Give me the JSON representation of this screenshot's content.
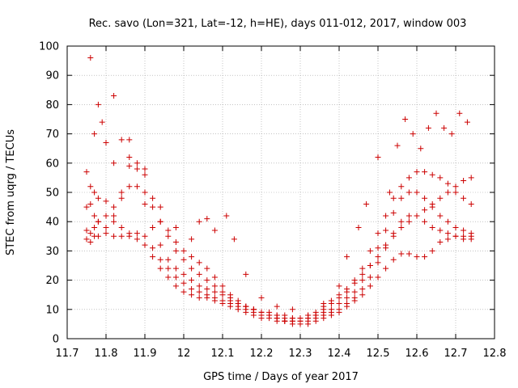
{
  "chart_data": {
    "type": "scatter",
    "title": "Rec. savo (Lon=321, Lat=-12, h=HE), days 011-012, 2017, window 003",
    "xlabel": "GPS time / Days of year 2017",
    "ylabel": "STEC from uqrg / TECUs",
    "xlim": [
      11.7,
      12.8
    ],
    "ylim": [
      0,
      100
    ],
    "xticks": [
      "11.7",
      "11.8",
      "11.9",
      "12",
      "12.1",
      "12.2",
      "12.3",
      "12.4",
      "12.5",
      "12.6",
      "12.7",
      "12.8"
    ],
    "yticks": [
      "0",
      "10",
      "20",
      "30",
      "40",
      "50",
      "60",
      "70",
      "80",
      "90",
      "100"
    ],
    "grid": true,
    "marker": "+",
    "color": "#cc0000",
    "series": [
      {
        "name": "",
        "x": [
          11.76,
          11.77,
          11.78,
          11.79,
          11.8,
          11.82,
          11.84,
          11.86,
          11.88,
          11.9,
          11.92,
          11.94,
          11.96,
          11.98,
          12.0,
          12.02,
          12.04,
          12.06,
          12.08,
          12.1,
          12.12,
          12.14,
          12.16,
          12.18,
          12.2,
          12.22,
          12.24,
          12.26,
          12.28,
          12.3,
          12.32,
          12.34,
          12.36,
          12.38,
          12.4,
          12.42,
          12.44,
          12.46,
          12.48,
          12.5,
          12.52,
          12.54,
          12.56,
          12.58,
          12.6,
          12.62,
          12.64,
          12.66,
          12.68,
          12.7,
          12.72,
          12.74
        ],
        "y": [
          96,
          70,
          80,
          74,
          67,
          83,
          68,
          68,
          58,
          50,
          45,
          40,
          37,
          33,
          30,
          28,
          26,
          24,
          21,
          18,
          15,
          13,
          11,
          10,
          9,
          8,
          7,
          6,
          6,
          6,
          7,
          8,
          10,
          12,
          14,
          16,
          19,
          22,
          25,
          28,
          32,
          35,
          38,
          40,
          42,
          44,
          46,
          48,
          50,
          52,
          54,
          55
        ]
      },
      {
        "name": "",
        "x": [
          11.75,
          11.76,
          11.77,
          11.78,
          11.8,
          11.82,
          11.84,
          11.86,
          11.88,
          11.9,
          11.92,
          11.94,
          11.96,
          11.98,
          12.0,
          12.02,
          12.04,
          12.06,
          12.08,
          12.1,
          12.12,
          12.14,
          12.16,
          12.18,
          12.2,
          12.22,
          12.24,
          12.26,
          12.28,
          12.3,
          12.32,
          12.34,
          12.36,
          12.38,
          12.4,
          12.42,
          12.44,
          12.46,
          12.48,
          12.5,
          12.52,
          12.54,
          12.56,
          12.58,
          12.6,
          12.62,
          12.64,
          12.66,
          12.68,
          12.7,
          12.72,
          12.74
        ],
        "y": [
          57,
          52,
          50,
          48,
          47,
          45,
          50,
          59,
          60,
          56,
          48,
          40,
          35,
          30,
          27,
          24,
          22,
          20,
          18,
          16,
          14,
          12,
          11,
          10,
          9,
          8,
          8,
          7,
          7,
          7,
          8,
          9,
          11,
          13,
          15,
          17,
          20,
          24,
          30,
          36,
          42,
          48,
          52,
          55,
          57,
          57,
          56,
          55,
          53,
          50,
          48,
          46
        ]
      },
      {
        "name": "",
        "x": [
          11.75,
          11.76,
          11.77,
          11.78,
          11.8,
          11.82,
          11.84,
          11.86,
          11.88,
          11.9,
          11.92,
          11.94,
          11.96,
          11.98,
          12.0,
          12.02,
          12.04,
          12.06,
          12.08,
          12.1,
          12.12,
          12.14,
          12.16,
          12.18,
          12.2,
          12.22,
          12.24,
          12.26,
          12.28,
          12.3,
          12.32,
          12.34,
          12.36,
          12.38,
          12.4,
          12.42,
          12.44,
          12.46,
          12.48,
          12.5,
          12.52,
          12.54,
          12.56,
          12.58,
          12.6,
          12.62,
          12.64,
          12.66,
          12.68,
          12.7,
          12.72,
          12.74
        ],
        "y": [
          45,
          46,
          42,
          40,
          38,
          42,
          48,
          52,
          52,
          46,
          38,
          32,
          27,
          24,
          22,
          20,
          18,
          17,
          16,
          15,
          13,
          12,
          11,
          10,
          9,
          9,
          8,
          8,
          7,
          7,
          7,
          8,
          9,
          10,
          12,
          14,
          16,
          20,
          25,
          31,
          37,
          43,
          48,
          50,
          50,
          48,
          45,
          42,
          40,
          38,
          37,
          36
        ]
      },
      {
        "name": "",
        "x": [
          11.75,
          11.76,
          11.77,
          11.78,
          11.8,
          11.82,
          11.84,
          11.86,
          11.88,
          11.9,
          11.92,
          11.94,
          11.96,
          11.98,
          12.0,
          12.02,
          12.04,
          12.06,
          12.08,
          12.1,
          12.12,
          12.14,
          12.16,
          12.18,
          12.2,
          12.22,
          12.24,
          12.26,
          12.28,
          12.3,
          12.32,
          12.34,
          12.36,
          12.38,
          12.4,
          12.42,
          12.44,
          12.46,
          12.48,
          12.5,
          12.52,
          12.54,
          12.56,
          12.58,
          12.6,
          12.62,
          12.64,
          12.66,
          12.68,
          12.7,
          12.72,
          12.74
        ],
        "y": [
          37,
          36,
          38,
          40,
          42,
          40,
          38,
          36,
          36,
          35,
          31,
          27,
          24,
          21,
          19,
          17,
          16,
          15,
          14,
          13,
          12,
          11,
          10,
          9,
          8,
          8,
          7,
          6,
          6,
          6,
          6,
          7,
          8,
          9,
          10,
          12,
          14,
          17,
          21,
          26,
          31,
          36,
          40,
          42,
          42,
          40,
          38,
          37,
          36,
          35,
          35,
          35
        ]
      },
      {
        "name": "",
        "x": [
          11.75,
          11.76,
          11.77,
          11.78,
          11.8,
          11.82,
          11.84,
          11.86,
          11.88,
          11.9,
          11.92,
          11.94,
          11.96,
          11.98,
          12.0,
          12.02,
          12.04,
          12.06,
          12.08,
          12.1,
          12.12,
          12.14,
          12.16,
          12.18,
          12.2,
          12.22,
          12.24,
          12.26,
          12.28,
          12.3,
          12.32,
          12.34,
          12.36,
          12.38,
          12.4,
          12.42,
          12.44,
          12.46,
          12.48,
          12.5,
          12.52,
          12.54,
          12.56,
          12.58,
          12.6,
          12.62,
          12.64,
          12.66,
          12.68,
          12.7,
          12.72,
          12.74
        ],
        "y": [
          34,
          33,
          35,
          35,
          36,
          35,
          35,
          35,
          34,
          32,
          28,
          24,
          21,
          18,
          16,
          15,
          14,
          14,
          13,
          12,
          11,
          10,
          9,
          8,
          7,
          7,
          6,
          6,
          5,
          5,
          5,
          6,
          7,
          8,
          9,
          11,
          13,
          15,
          18,
          21,
          24,
          27,
          29,
          29,
          28,
          28,
          30,
          33,
          34,
          35,
          34,
          34
        ]
      },
      {
        "name": "",
        "x": [
          11.82,
          11.86,
          11.9,
          11.94,
          11.98,
          12.02,
          12.04,
          12.06,
          12.08,
          12.11,
          12.13,
          12.16,
          12.2,
          12.24,
          12.28,
          12.32,
          12.36,
          12.4,
          12.42,
          12.45,
          12.47,
          12.5,
          12.53,
          12.55,
          12.57,
          12.59,
          12.61,
          12.63,
          12.65,
          12.67,
          12.69,
          12.71,
          12.73
        ],
        "y": [
          60,
          62,
          58,
          45,
          38,
          34,
          40,
          41,
          37,
          42,
          34,
          22,
          14,
          11,
          10,
          8,
          12,
          18,
          28,
          38,
          46,
          62,
          50,
          66,
          75,
          70,
          65,
          72,
          77,
          72,
          70,
          77,
          74
        ]
      }
    ]
  }
}
